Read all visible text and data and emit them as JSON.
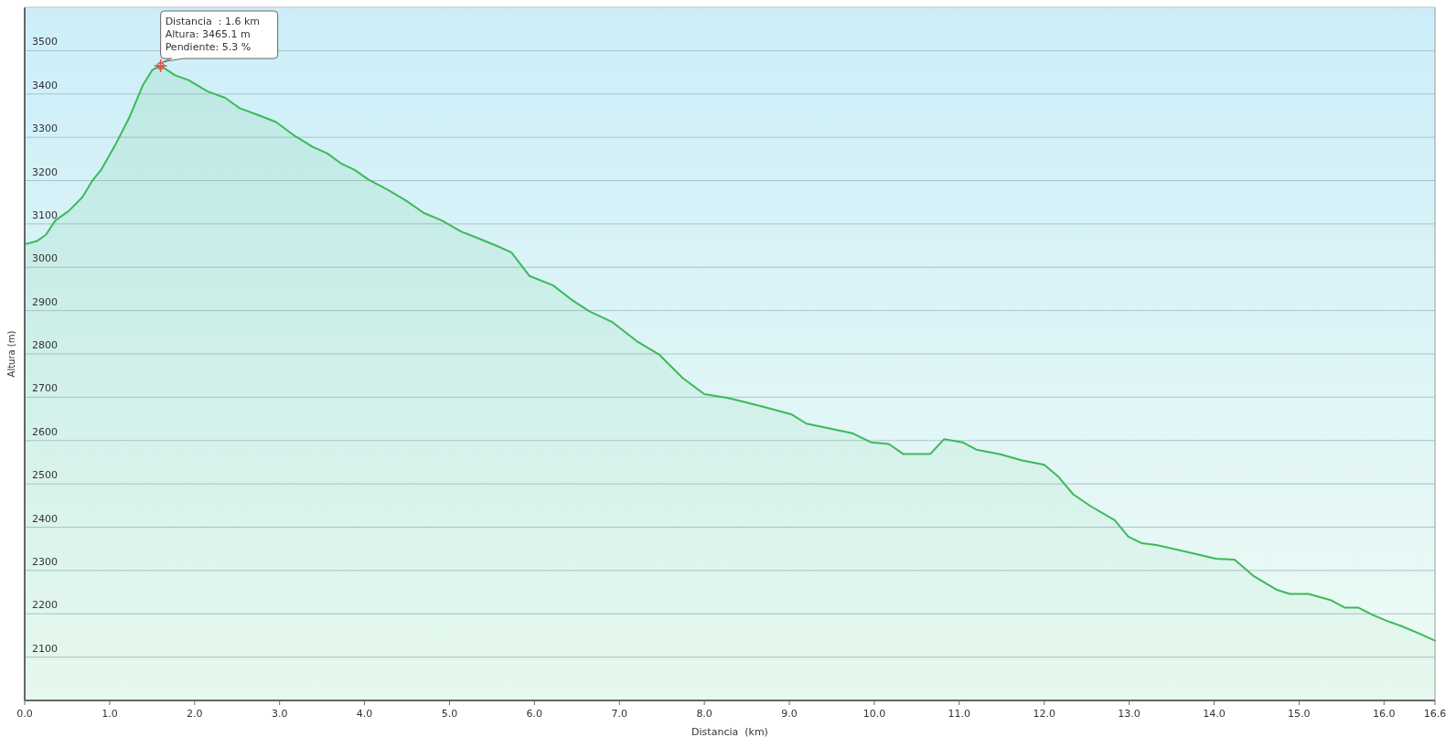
{
  "chart_data": {
    "type": "area",
    "xlabel": "Distancia  (km)",
    "ylabel": "Altura (m)",
    "x": [
      0,
      0.14,
      0.25,
      0.36,
      0.52,
      0.68,
      0.79,
      0.9,
      1.06,
      1.23,
      1.39,
      1.5,
      1.6,
      1.77,
      1.93,
      2.15,
      2.36,
      2.53,
      2.74,
      2.96,
      3.18,
      3.39,
      3.56,
      3.72,
      3.88,
      4.05,
      4.26,
      4.48,
      4.7,
      4.91,
      5.13,
      5.35,
      5.56,
      5.73,
      5.94,
      6.22,
      6.43,
      6.65,
      6.92,
      7.2,
      7.47,
      7.74,
      8.0,
      8.28,
      8.49,
      8.71,
      9.03,
      9.2,
      9.47,
      9.74,
      9.96,
      10.17,
      10.34,
      10.66,
      10.82,
      11.04,
      11.2,
      11.47,
      11.74,
      12.0,
      12.17,
      12.34,
      12.55,
      12.83,
      12.99,
      13.15,
      13.32,
      13.7,
      14.02,
      14.24,
      14.46,
      14.73,
      14.89,
      15.11,
      15.38,
      15.54,
      15.7,
      15.87,
      16.03,
      16.2,
      16.41,
      16.6
    ],
    "series": [
      {
        "color": "#3cb95a",
        "values": [
          3053,
          3060,
          3075,
          3108,
          3130,
          3162,
          3198,
          3225,
          3280,
          3345,
          3420,
          3455,
          3465.1,
          3443,
          3432,
          3406,
          3391,
          3367,
          3352,
          3335,
          3303,
          3278,
          3263,
          3240,
          3225,
          3202,
          3180,
          3155,
          3125,
          3108,
          3083,
          3066,
          3049,
          3034,
          2980,
          2958,
          2926,
          2898,
          2873,
          2830,
          2798,
          2745,
          2707,
          2698,
          2688,
          2677,
          2660,
          2639,
          2628,
          2617,
          2596,
          2592,
          2569,
          2569,
          2603,
          2596,
          2579,
          2569,
          2554,
          2544,
          2516,
          2476,
          2448,
          2416,
          2378,
          2363,
          2359,
          2342,
          2327,
          2325,
          2288,
          2256,
          2246,
          2246,
          2231,
          2214,
          2214,
          2197,
          2184,
          2172,
          2155,
          2138
        ]
      }
    ],
    "xlim": [
      0,
      16.6
    ],
    "xticks": [
      {
        "value": 0,
        "label": "0.0"
      },
      {
        "value": 1,
        "label": "1.0"
      },
      {
        "value": 2,
        "label": "2.0"
      },
      {
        "value": 3,
        "label": "3.0"
      },
      {
        "value": 4,
        "label": "4.0"
      },
      {
        "value": 5,
        "label": "5.0"
      },
      {
        "value": 6,
        "label": "6.0"
      },
      {
        "value": 7,
        "label": "7.0"
      },
      {
        "value": 8,
        "label": "8.0"
      },
      {
        "value": 9,
        "label": "9.0"
      },
      {
        "value": 10,
        "label": "10.0"
      },
      {
        "value": 11,
        "label": "11.0"
      },
      {
        "value": 12,
        "label": "12.0"
      },
      {
        "value": 13,
        "label": "13.0"
      },
      {
        "value": 14,
        "label": "14.0"
      },
      {
        "value": 15,
        "label": "15.0"
      },
      {
        "value": 16,
        "label": "16.0"
      },
      {
        "value": 16.6,
        "label": "16.6"
      }
    ],
    "ylim": [
      2000,
      3600
    ],
    "yticks": [
      2100,
      2200,
      2300,
      2400,
      2500,
      2600,
      2700,
      2800,
      2900,
      3000,
      3100,
      3200,
      3300,
      3400,
      3500
    ],
    "grid": "y",
    "annotations": [
      {
        "text": "Distancia  : 1.6 km\nAltura: 3465.1 m\nPendiente: 5.3 %",
        "x": 1.6,
        "y": 3465.1
      }
    ]
  }
}
